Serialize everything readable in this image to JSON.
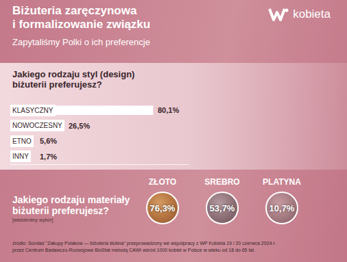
{
  "header": {
    "title": "Biżuteria zaręczynowa\ni formalizowanie związku",
    "subtitle": "Zapytaliśmy Polki o ich preferencje",
    "logo": "kobieta"
  },
  "chart_data": {
    "type": "bar",
    "orientation": "horizontal",
    "title": "Jakiego rodzaju styl (design)\nbiżuterii preferujesz?",
    "categories": [
      "KLASYCZNY",
      "NOWOCZESNY",
      "ETNO",
      "INNY"
    ],
    "values": [
      80.1,
      26.5,
      5.6,
      1.7
    ],
    "value_labels": [
      "80,1%",
      "26,5%",
      "5,6%",
      "1,7%"
    ],
    "color": "#ffffff",
    "xlim": [
      0,
      100
    ],
    "data_labels": true,
    "tick_labels": false,
    "grid": false
  },
  "materials": {
    "title": "Jakiego rodzaju materiały\nbiżuterii preferujesz?",
    "note": "[wielokrotny wybór]",
    "items": [
      {
        "name": "ZŁOTO",
        "label": "76,3%"
      },
      {
        "name": "SREBRO",
        "label": "53,7%"
      },
      {
        "name": "PLATYNA",
        "label": "10,7%"
      }
    ]
  },
  "source": "źródło: Sondaż \"Zakupy Polaków — biżuteria ślubna\" przeprowadzony we współpracy z WP Kobieta 19 i 20 czerwca 2024 r.\nprzez Centrum Badawczo-Rozwojowe BioStat metodą CAWI wśród 1000 kobiet w Polsce w wieku od 18 do 65 lat."
}
